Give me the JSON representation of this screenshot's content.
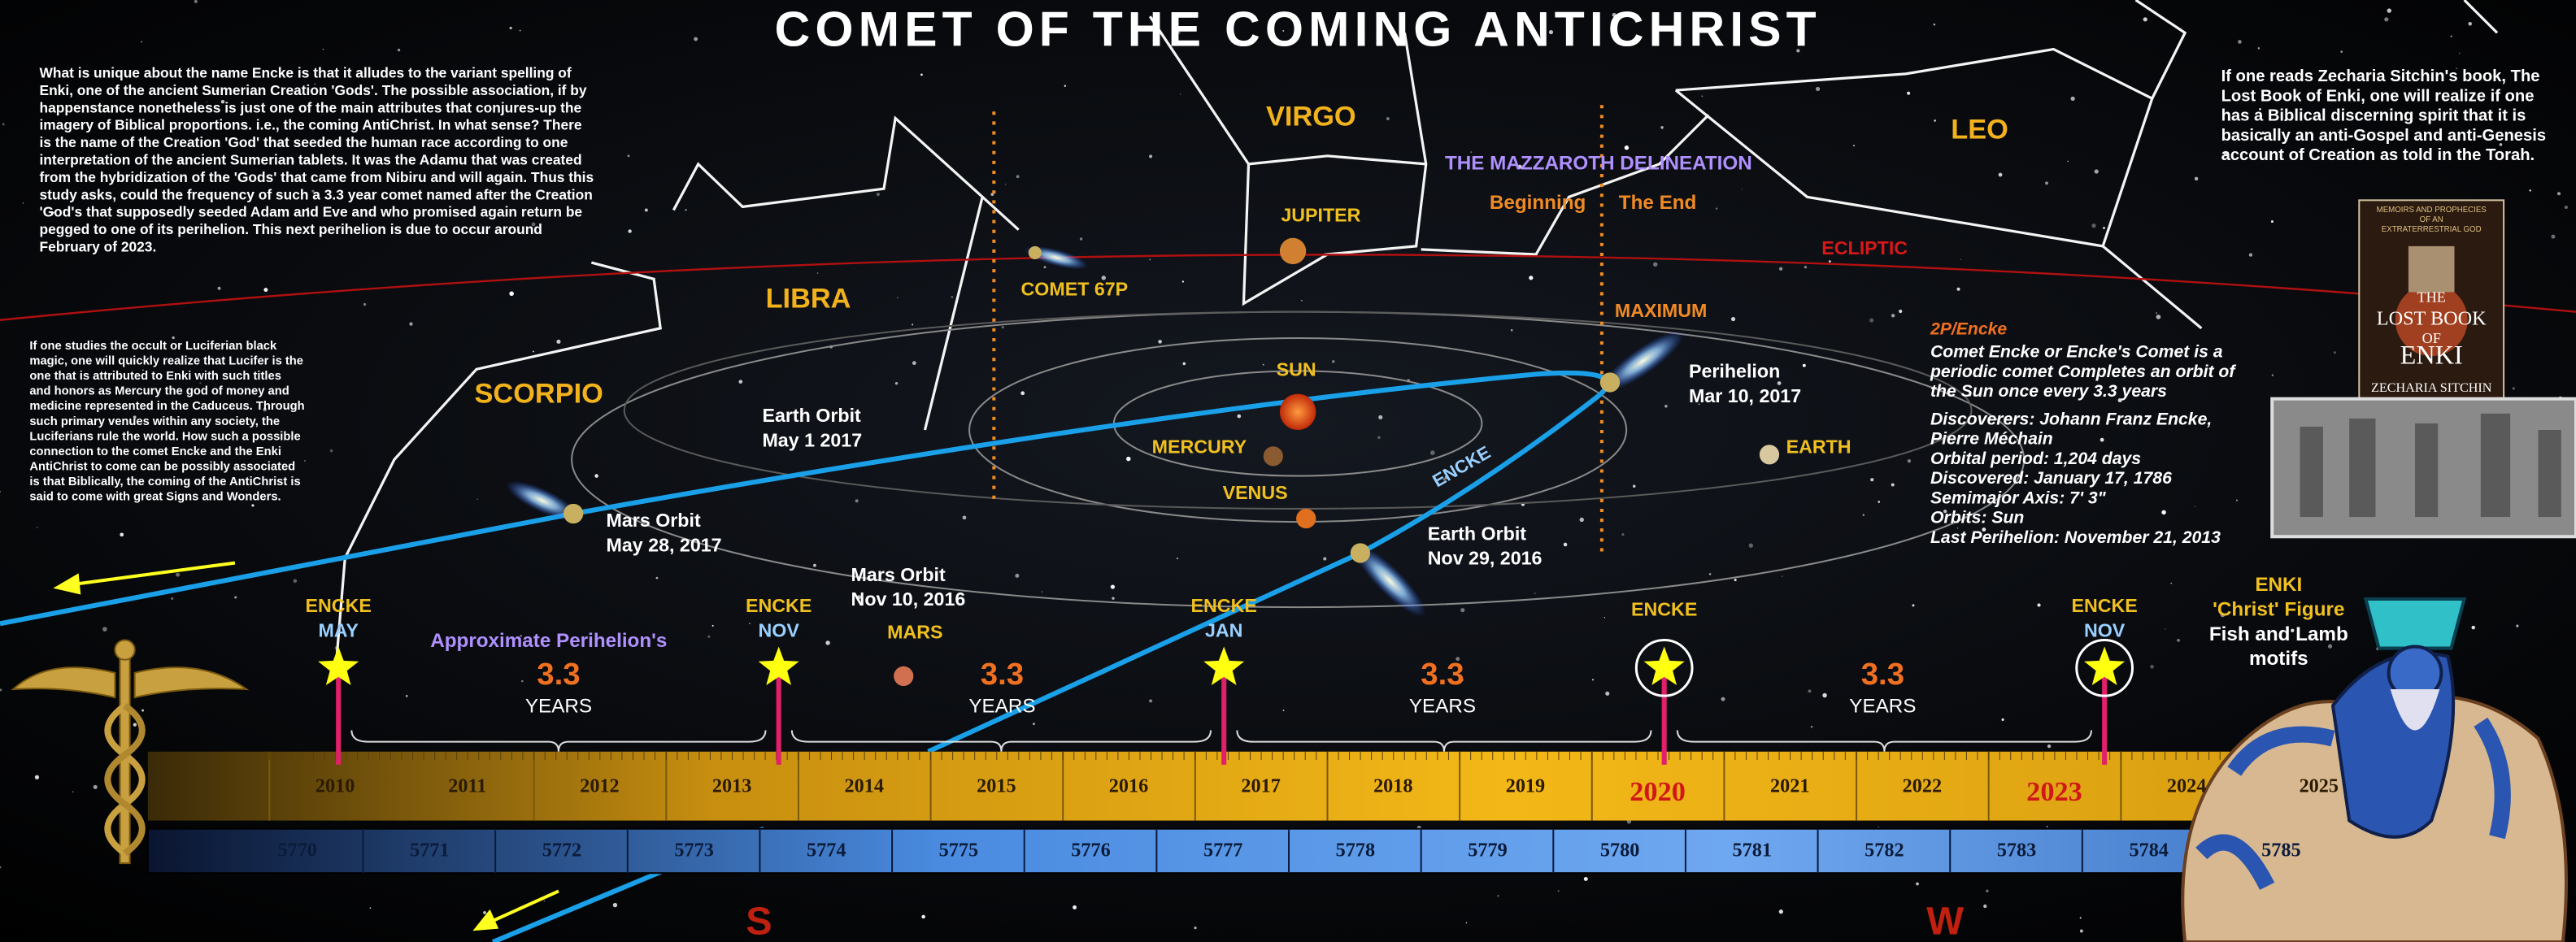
{
  "title": "COMET OF THE COMING ANTICHRIST",
  "intro_text": [
    "What is unique about the name Encke is that it alludes to the variant spelling of",
    "Enki, one of the ancient Sumerian Creation 'Gods'. The possible association, if by",
    "happenstance nonetheless is just one of the main attributes that conjures-up the",
    "imagery of Biblical proportions. i.e., the coming AntiChrist. In what sense? There",
    "is the name of the Creation 'God' that seeded the human race according to one",
    "interpretation of the ancient Sumerian tablets. It was the Adamu that was created",
    "from the hybridization of the 'Gods' that came from Nibiru and will again. Thus this",
    "study asks, could the frequency of such a 3.3 year comet named after the Creation",
    "'God's that supposedly seeded Adam and Eve and who promised again return be",
    "pegged to one of its perihelion. This next perihelion is due to occur around",
    "February of 2023."
  ],
  "lucifer_text": [
    "If one studies the occult or Luciferian black",
    "magic, one will quickly realize that Lucifer is the",
    "one that is attributed to Enki with such titles",
    "and honors as Mercury the god of money and",
    "medicine represented in the Caduceus. Through",
    "such primary venues within any society, the",
    "Luciferians rule the world. How such a possible",
    "connection to the comet Encke and the Enki",
    "AntiChrist to come can be possibly associated",
    "is that Biblically, the coming of the AntiChrist is",
    "said to come with great Signs and Wonders."
  ],
  "sitchin_text": [
    "If one reads Zecharia Sitchin's book, The",
    "Lost Book of Enki, one will realize if one",
    "has a Biblical discerning spirit that it is",
    "basically an anti-Gospel and anti-Genesis",
    "account of Creation as told in the Torah."
  ],
  "constellations": {
    "virgo": "VIRGO",
    "libra": "LIBRA",
    "scorpio": "SCORPIO",
    "leo": "LEO"
  },
  "mazzaroth": {
    "title": "THE MAZZAROTH DELINEATION",
    "beginning": "Beginning",
    "end": "The End"
  },
  "sky_labels": {
    "jupiter": "JUPITER",
    "comet_67p": "COMET 67P",
    "ecliptic": "ECLIPTIC",
    "maximum": "MAXIMUM",
    "sun": "SUN",
    "mercury": "MERCURY",
    "venus": "VENUS",
    "earth": "EARTH",
    "encke_orbit": "ENCKE",
    "mars": "MARS"
  },
  "orbit_events": [
    {
      "title": "Earth Orbit",
      "date": "May 1 2017"
    },
    {
      "title": "Mars Orbit",
      "date": "May 28, 2017"
    },
    {
      "title": "Mars Orbit",
      "date": "Nov 10, 2016"
    },
    {
      "title": "Earth Orbit",
      "date": "Nov 29, 2016"
    },
    {
      "title": "Perihelion",
      "date": "Mar 10, 2017"
    }
  ],
  "encke_info": {
    "title": "2P/Encke",
    "description": [
      "Comet Encke or Encke's Comet is a",
      "periodic comet Completes an orbit of",
      "the Sun once every 3.3 years"
    ],
    "facts": [
      "Discoverers: Johann Franz Encke,",
      "Pierre Méchain",
      "Orbital period: 1,204 days",
      "Discovered: January 17, 1786",
      "Semimajor Axis: 7' 3\"",
      "Orbits: Sun",
      "Last Perihelion: November 21, 2013"
    ]
  },
  "timeline": {
    "markers": [
      {
        "label": "ENCKE",
        "month": "MAY"
      },
      {
        "label": "ENCKE",
        "month": "NOV"
      },
      {
        "label": "ENCKE",
        "month": "JAN"
      },
      {
        "label": "ENCKE"
      },
      {
        "label": "ENCKE",
        "month": "NOV"
      }
    ],
    "perihelion_note": "Approximate Perihelion's",
    "intervals": [
      {
        "value": "3.3",
        "unit": "YEARS"
      },
      {
        "value": "3.3",
        "unit": "YEARS"
      },
      {
        "value": "3.3",
        "unit": "YEARS"
      },
      {
        "value": "3.3",
        "unit": "YEARS"
      }
    ],
    "years": [
      2010,
      2011,
      2012,
      2013,
      2014,
      2015,
      2016,
      2017,
      2018,
      2019,
      2020,
      2021,
      2022,
      2023,
      2024,
      2025
    ],
    "hebrew_years": [
      5770,
      5771,
      5772,
      5773,
      5774,
      5775,
      5776,
      5777,
      5778,
      5779,
      5780,
      5781,
      5782,
      5783,
      5784,
      5785
    ]
  },
  "enki_caption": [
    "ENKI",
    "'Christ' Figure",
    "Fish and Lamb",
    "motifs"
  ],
  "book": {
    "tagline": [
      "MEMOIRS AND PROPHECIES",
      "OF AN",
      "EXTRATERRESTRIAL GOD"
    ],
    "title_lines": [
      "THE",
      "LOST BOOK",
      "OF",
      "ENKI"
    ],
    "author": "ZECHARIA SITCHIN"
  },
  "compass": [
    "S",
    "W"
  ]
}
